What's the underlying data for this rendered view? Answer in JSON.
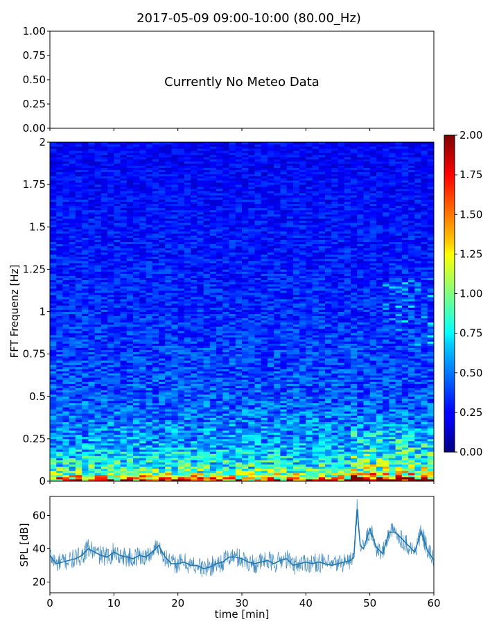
{
  "chart_data": [
    {
      "type": "line",
      "panel": "meteo",
      "title": "2017-05-09 09:00-10:00 (80.00_Hz)",
      "message": "Currently No Meteo Data",
      "ylim": [
        0,
        1
      ],
      "yticks": [
        "0.00",
        "0.25",
        "0.50",
        "0.75",
        "1.00"
      ],
      "series": []
    },
    {
      "type": "heatmap",
      "panel": "spectrogram",
      "ylabel": "FFT Frequenz [Hz]",
      "xlim": [
        0,
        60
      ],
      "ylim": [
        0,
        2
      ],
      "yticks": [
        "0",
        "0.25",
        "0.5",
        "0.75",
        "1",
        "1.25",
        "1.5",
        "1.75",
        "2"
      ],
      "colorbar": {
        "range": [
          0,
          2
        ],
        "ticks": [
          "0.00",
          "0.25",
          "0.50",
          "0.75",
          "1.00",
          "1.25",
          "1.50",
          "1.75",
          "2.00"
        ],
        "colormap": "jet"
      },
      "level_profile": {
        "freq_hz": [
          0.0,
          0.02,
          0.05,
          0.1,
          0.25,
          0.5,
          1.0,
          1.5,
          2.0
        ],
        "typical_value": [
          1.8,
          1.3,
          0.95,
          0.75,
          0.55,
          0.42,
          0.33,
          0.28,
          0.24
        ]
      }
    },
    {
      "type": "line",
      "panel": "spl",
      "xlabel": "time [min]",
      "ylabel": "SPL [dB]",
      "xlim": [
        0,
        60
      ],
      "ylim": [
        13.5,
        71.5
      ],
      "xticks": [
        "0",
        "10",
        "20",
        "30",
        "40",
        "50",
        "60"
      ],
      "yticks": [
        "20",
        "40",
        "60"
      ],
      "color": "#1f77b4",
      "x": [
        0,
        1,
        2,
        3,
        4,
        5,
        6,
        7,
        8,
        9,
        10,
        11,
        12,
        13,
        14,
        15,
        16,
        17,
        18,
        19,
        20,
        21,
        22,
        23,
        24,
        25,
        26,
        27,
        28,
        29,
        30,
        31,
        32,
        33,
        34,
        35,
        36,
        37,
        38,
        39,
        40,
        41,
        42,
        43,
        44,
        45,
        46,
        47,
        47.5,
        48,
        48.5,
        49,
        50,
        51,
        52,
        53,
        54,
        55,
        56,
        57,
        58,
        59,
        60
      ],
      "values": [
        36,
        31,
        32,
        33,
        34,
        36,
        40,
        38,
        36,
        35,
        38,
        36,
        35,
        34,
        36,
        35,
        38,
        42,
        35,
        31,
        31,
        32,
        30,
        30,
        28,
        29,
        31,
        32,
        35,
        35,
        34,
        32,
        31,
        32,
        33,
        31,
        33,
        34,
        30,
        31,
        32,
        31,
        32,
        31,
        30,
        31,
        32,
        33,
        35,
        64,
        42,
        40,
        52,
        41,
        37,
        50,
        50,
        46,
        42,
        38,
        50,
        39,
        33
      ]
    }
  ]
}
